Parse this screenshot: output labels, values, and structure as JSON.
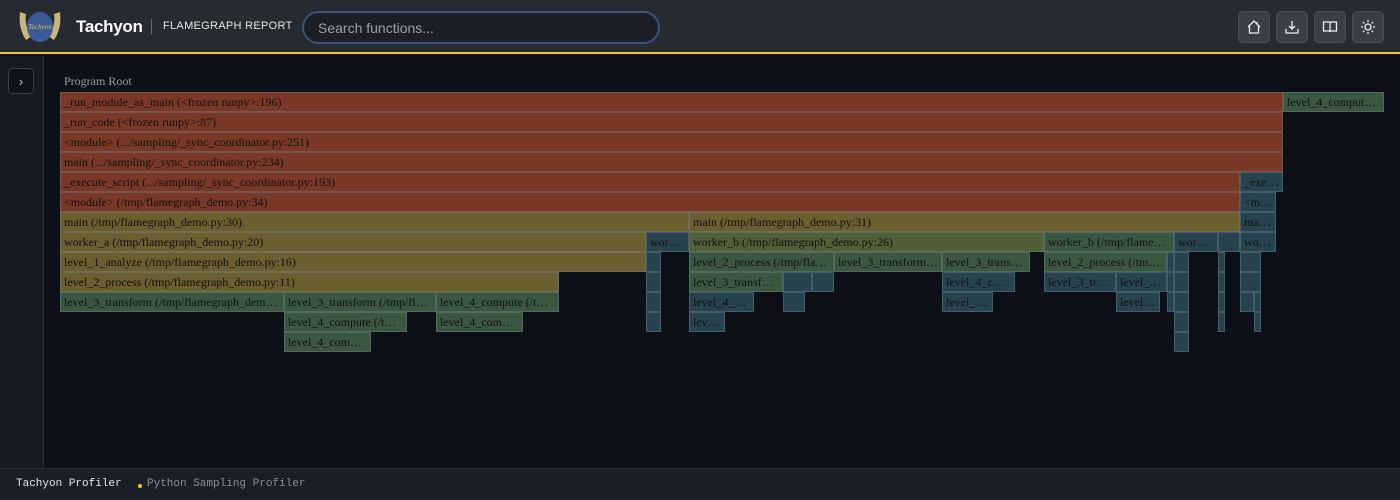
{
  "header": {
    "brand": "Tachyon",
    "subtitle": "FLAMEGRAPH REPORT",
    "search_placeholder": "Search functions...",
    "logo_text": "Tachyon",
    "buttons": [
      {
        "icon": "home-icon"
      },
      {
        "icon": "download-icon"
      },
      {
        "icon": "book-icon"
      },
      {
        "icon": "sun-icon"
      }
    ]
  },
  "sidebar": {
    "toggle_icon": "chevron-right-icon"
  },
  "flamegraph": {
    "root_label": "Program Root",
    "colors": {
      "orange": "#7a3826",
      "olive": "#6b5e2f",
      "greenolive": "#505f37",
      "green": "#3b5740",
      "teal": "#27444e"
    },
    "frames": [
      "_run_module_as_main (<frozen runpy>:196)",
      "level_4_comput…",
      "_run_code (<frozen runpy>:87)",
      "<module> (.../sampling/_sync_coordinator.py:251)",
      "main (.../sampling/_sync_coordinator.py:234)",
      "_execute_script (.../sampling/_sync_coordinator.py:193)",
      "_exe…",
      "<module> (/tmp/flamegraph_demo.py:34)",
      "<m…",
      "main (/tmp/flamegraph_demo.py:30)",
      "main (/tmp/flamegraph_demo.py:31)",
      "ma…",
      "worker_a (/tmp/flamegraph_demo.py:20)",
      "wor…",
      "worker_b (/tmp/flamegraph_demo.py:26)",
      "worker_b (/tmp/flame…",
      "wor…",
      "",
      "wo…",
      "level_1_analyze (/tmp/flamegraph_demo.py:16)",
      "",
      "level_2_process (/tmp/fla…",
      "level_3_transform…",
      "level_3_trans…",
      "level_2_process (/tm…",
      "",
      "",
      "",
      "",
      "level_2_process (/tmp/flamegraph_demo.py:11)",
      "",
      "level_3_transf…",
      "",
      "",
      "level_4_c…",
      "level_3_tr…",
      "level_…",
      "",
      "",
      "",
      "",
      "level_3_transform (/tmp/flamegraph_dem…",
      "level_3_transform (/tmp/fl…",
      "level_4_compute (/t…",
      "",
      "level_4_…",
      "",
      "level_…",
      "level…",
      "",
      "",
      "",
      "",
      "",
      "level_4_compute (/t…",
      "level_4_com…",
      "",
      "lev…",
      "",
      "",
      "",
      "level_4_com…",
      ""
    ]
  },
  "footer": {
    "app": "Tachyon Profiler",
    "tag": "Python Sampling Profiler"
  }
}
